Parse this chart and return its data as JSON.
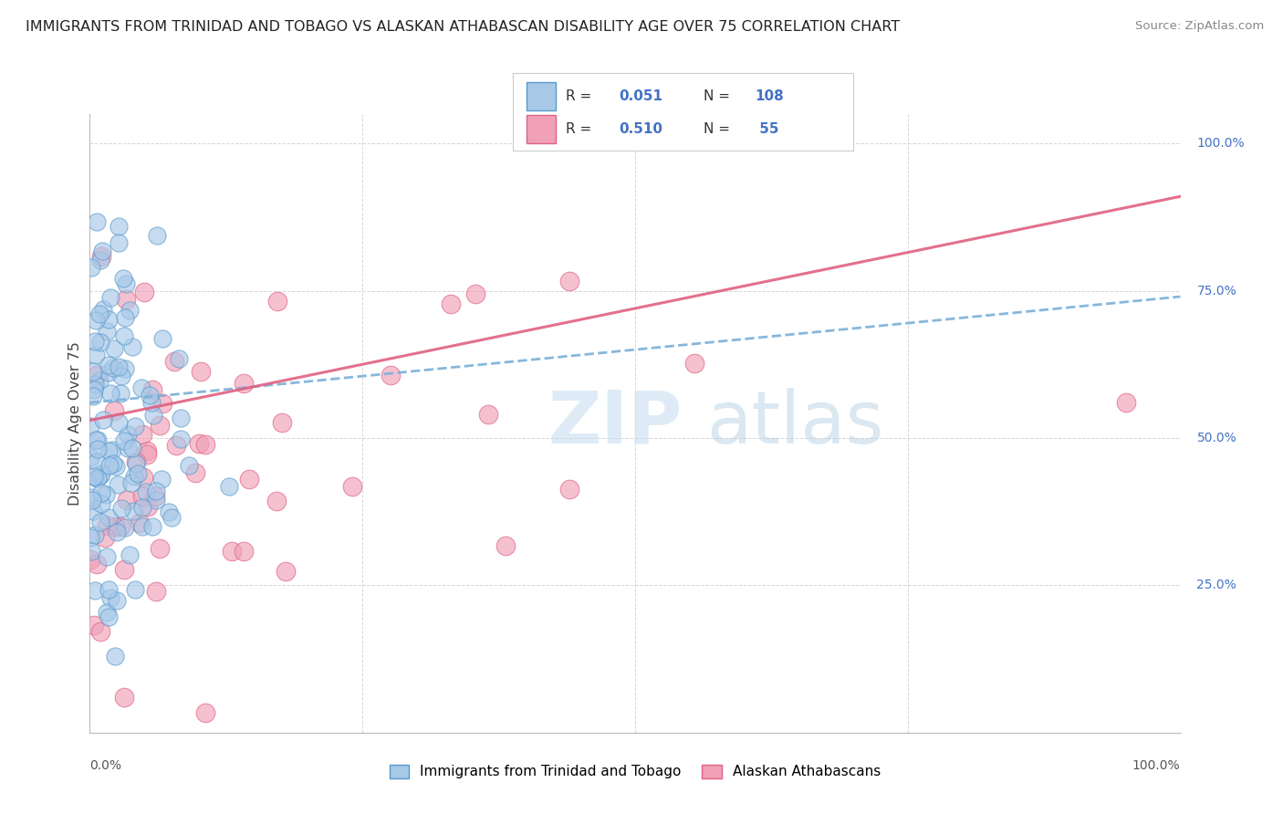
{
  "title": "IMMIGRANTS FROM TRINIDAD AND TOBAGO VS ALASKAN ATHABASCAN DISABILITY AGE OVER 75 CORRELATION CHART",
  "source": "Source: ZipAtlas.com",
  "ylabel": "Disability Age Over 75",
  "legend_blue_label": "Immigrants from Trinidad and Tobago",
  "legend_pink_label": "Alaskan Athabascans",
  "blue_R": 0.051,
  "blue_N": 108,
  "pink_R": 0.51,
  "pink_N": 55,
  "watermark_zip": "ZIP",
  "watermark_atlas": "atlas",
  "background_color": "#ffffff",
  "blue_fill_color": "#a8c8e8",
  "blue_edge_color": "#5599cc",
  "pink_fill_color": "#f0a0b8",
  "pink_edge_color": "#e06080",
  "blue_line_color": "#7ab0d8",
  "pink_line_color": "#e06080",
  "grid_color": "#cccccc",
  "right_label_color": "#4472c4",
  "bottom_label_color": "#555555",
  "title_color": "#222222",
  "source_color": "#888888"
}
